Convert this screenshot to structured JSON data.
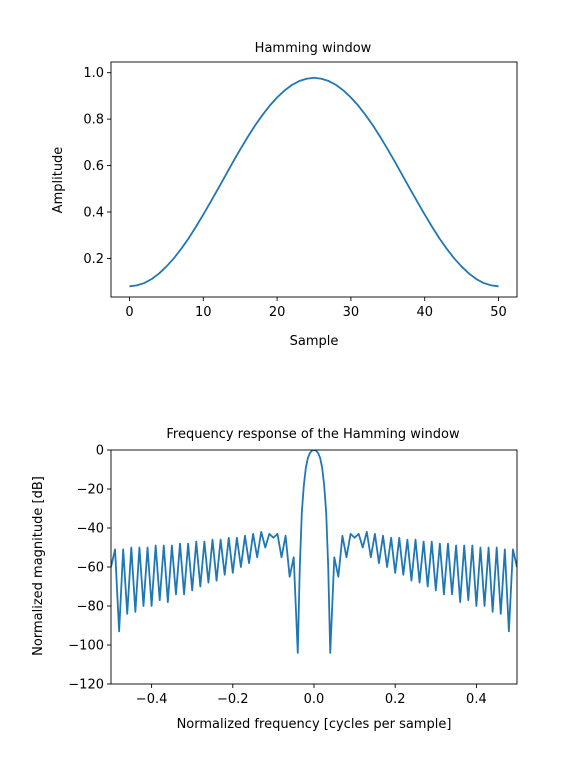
{
  "chart_data": [
    {
      "type": "line",
      "title": "Hamming window",
      "xlabel": "Sample",
      "ylabel": "Amplitude",
      "xlim": [
        -2.5,
        52.5
      ],
      "ylim": [
        0.034,
        1.046
      ],
      "xticks": [
        0,
        10,
        20,
        30,
        40,
        50
      ],
      "xtick_labels": [
        "0",
        "10",
        "20",
        "30",
        "40",
        "50"
      ],
      "yticks": [
        0.2,
        0.4,
        0.6,
        0.8,
        1.0
      ],
      "ytick_labels": [
        "0.2",
        "0.4",
        "0.6",
        "0.8",
        "1.0"
      ],
      "grid": false,
      "series": [
        {
          "color": "#1f77b4",
          "x": [
            0,
            1,
            2,
            3,
            4,
            5,
            6,
            7,
            8,
            9,
            10,
            11,
            12,
            13,
            14,
            15,
            16,
            17,
            18,
            19,
            20,
            21,
            22,
            23,
            24,
            25,
            26,
            27,
            28,
            29,
            30,
            31,
            32,
            33,
            34,
            35,
            36,
            37,
            38,
            39,
            40,
            41,
            42,
            43,
            44,
            45,
            46,
            47,
            48,
            49,
            50
          ],
          "y": [
            0.08,
            0.084,
            0.094,
            0.111,
            0.135,
            0.165,
            0.2,
            0.241,
            0.286,
            0.336,
            0.389,
            0.444,
            0.5,
            0.557,
            0.614,
            0.669,
            0.722,
            0.772,
            0.817,
            0.858,
            0.893,
            0.923,
            0.947,
            0.964,
            0.974,
            0.978,
            0.974,
            0.964,
            0.947,
            0.923,
            0.893,
            0.858,
            0.817,
            0.772,
            0.722,
            0.669,
            0.614,
            0.557,
            0.5,
            0.444,
            0.389,
            0.336,
            0.286,
            0.241,
            0.2,
            0.165,
            0.135,
            0.111,
            0.094,
            0.084,
            0.08
          ]
        }
      ]
    },
    {
      "type": "line",
      "title": "Frequency response of the Hamming window",
      "xlabel": "Normalized frequency [cycles per sample]",
      "ylabel": "Normalized magnitude [dB]",
      "xlim": [
        -0.5,
        0.5
      ],
      "ylim": [
        -120,
        0
      ],
      "xticks": [
        -0.4,
        -0.2,
        0.0,
        0.2,
        0.4
      ],
      "xtick_labels": [
        "−0.4",
        "−0.2",
        "0.0",
        "0.2",
        "0.4"
      ],
      "yticks": [
        0,
        -20,
        -40,
        -60,
        -80,
        -100,
        -120
      ],
      "ytick_labels": [
        "0",
        "−20",
        "−40",
        "−60",
        "−80",
        "−100",
        "−120"
      ],
      "grid": false,
      "series": [
        {
          "color": "#1f77b4",
          "x": [
            -0.5,
            -0.49,
            -0.48,
            -0.47,
            -0.46,
            -0.45,
            -0.44,
            -0.43,
            -0.42,
            -0.41,
            -0.4,
            -0.39,
            -0.38,
            -0.37,
            -0.36,
            -0.35,
            -0.34,
            -0.33,
            -0.32,
            -0.31,
            -0.3,
            -0.29,
            -0.28,
            -0.27,
            -0.26,
            -0.25,
            -0.24,
            -0.23,
            -0.22,
            -0.21,
            -0.2,
            -0.19,
            -0.18,
            -0.17,
            -0.16,
            -0.15,
            -0.14,
            -0.13,
            -0.12,
            -0.11,
            -0.1,
            -0.09,
            -0.08,
            -0.07,
            -0.06,
            -0.05,
            -0.04,
            -0.035,
            -0.03,
            -0.025,
            -0.02,
            -0.015,
            -0.01,
            -0.005,
            0.0,
            0.005,
            0.01,
            0.015,
            0.02,
            0.025,
            0.03,
            0.035,
            0.04,
            0.05,
            0.06,
            0.07,
            0.08,
            0.09,
            0.1,
            0.11,
            0.12,
            0.13,
            0.14,
            0.15,
            0.16,
            0.17,
            0.18,
            0.19,
            0.2,
            0.21,
            0.22,
            0.23,
            0.24,
            0.25,
            0.26,
            0.27,
            0.28,
            0.29,
            0.3,
            0.31,
            0.32,
            0.33,
            0.34,
            0.35,
            0.36,
            0.37,
            0.38,
            0.39,
            0.4,
            0.41,
            0.42,
            0.43,
            0.44,
            0.45,
            0.46,
            0.47,
            0.48,
            0.49,
            0.5
          ],
          "y": [
            -60,
            -51,
            -93,
            -51,
            -84,
            -50,
            -83,
            -50,
            -80,
            -50,
            -80,
            -49,
            -77,
            -49,
            -78,
            -49,
            -74,
            -48,
            -74,
            -48,
            -72,
            -47,
            -70,
            -47,
            -68,
            -46,
            -67,
            -46,
            -64,
            -45,
            -63,
            -45,
            -60,
            -44,
            -58,
            -43,
            -55,
            -42,
            -50,
            -43,
            -45,
            -43,
            -55,
            -44,
            -65,
            -55,
            -104,
            -60,
            -32,
            -18,
            -9,
            -4,
            -1.5,
            -0.3,
            0,
            -0.3,
            -1.5,
            -4,
            -9,
            -18,
            -32,
            -60,
            -104,
            -55,
            -65,
            -44,
            -55,
            -43,
            -45,
            -43,
            -50,
            -42,
            -55,
            -43,
            -58,
            -44,
            -60,
            -45,
            -63,
            -45,
            -64,
            -46,
            -67,
            -46,
            -68,
            -47,
            -70,
            -47,
            -72,
            -48,
            -74,
            -48,
            -74,
            -49,
            -78,
            -49,
            -77,
            -49,
            -80,
            -50,
            -80,
            -50,
            -83,
            -50,
            -84,
            -51,
            -93,
            -51,
            -60
          ]
        }
      ]
    }
  ]
}
